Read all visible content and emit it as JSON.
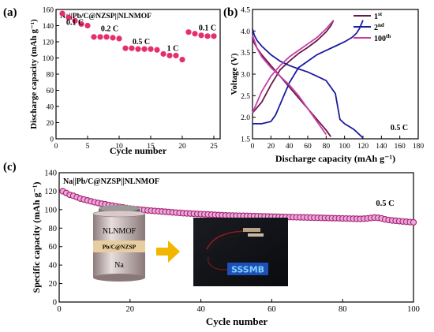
{
  "chart_data": [
    {
      "panel": "(a)",
      "type": "scatter",
      "annotation": "Na||Pb/C@NZSP||NLNMOF",
      "xlabel": "Cycle number",
      "ylabel": "Discharge capacity (mAh g⁻¹)",
      "xlim": [
        0,
        26
      ],
      "ylim": [
        0,
        160
      ],
      "xticks": [
        "0",
        "5",
        "10",
        "15",
        "20",
        "25"
      ],
      "yticks": [
        "0",
        "20",
        "40",
        "60",
        "80",
        "100",
        "120",
        "140",
        "160"
      ],
      "rate_labels": [
        {
          "text": "0.1 C",
          "x": 3.0,
          "y": 141
        },
        {
          "text": "0.2 C",
          "x": 8.5,
          "y": 133
        },
        {
          "text": "0.5 C",
          "x": 13.5,
          "y": 117
        },
        {
          "text": "1 C",
          "x": 18.5,
          "y": 109
        },
        {
          "text": "0.1 C",
          "x": 24.0,
          "y": 134
        }
      ],
      "series": [
        {
          "color": "#e62e6e",
          "x": [
            1,
            2,
            3,
            4,
            5,
            6,
            7,
            8,
            9,
            10,
            11,
            12,
            13,
            14,
            15,
            16,
            17,
            18,
            19,
            20,
            21,
            22,
            23,
            24,
            25
          ],
          "values": [
            155,
            150,
            146,
            142,
            140,
            126,
            126,
            126,
            125,
            124,
            112,
            112,
            111,
            111,
            111,
            110,
            105,
            103,
            103,
            98,
            132,
            130,
            128,
            127,
            127
          ]
        }
      ]
    },
    {
      "panel": "(b)",
      "type": "line",
      "xlabel": "Discharge capacity (mAh g⁻¹)",
      "ylabel": "Voltage (V)",
      "xlim": [
        0,
        180
      ],
      "ylim": [
        1.5,
        4.5
      ],
      "xticks": [
        "0",
        "20",
        "40",
        "60",
        "80",
        "100",
        "120",
        "140",
        "160",
        "180"
      ],
      "yticks": [
        "1.5",
        "2.0",
        "2.5",
        "3.0",
        "3.5",
        "4.0",
        "4.5"
      ],
      "annotation": "0.5 C",
      "series": [
        {
          "name": "1st",
          "color": "#6b1848",
          "charge": {
            "x": [
              0,
              10,
              20,
              30,
              40,
              50,
              60,
              70,
              80,
              85,
              88
            ],
            "values": [
              2.1,
              2.35,
              2.75,
              3.1,
              3.3,
              3.48,
              3.62,
              3.78,
              3.98,
              4.12,
              4.25
            ]
          },
          "discharge": {
            "x": [
              0,
              5,
              10,
              20,
              30,
              40,
              50,
              60,
              70,
              80,
              85
            ],
            "values": [
              3.8,
              3.6,
              3.45,
              3.2,
              2.95,
              2.7,
              2.45,
              2.2,
              1.95,
              1.7,
              1.55
            ]
          }
        },
        {
          "name": "2nd",
          "color": "#1c1c9e",
          "charge": {
            "x": [
              0,
              10,
              20,
              25,
              30,
              40,
              50,
              60,
              70,
              80,
              90,
              100,
              108,
              113,
              116,
              118,
              120
            ],
            "values": [
              1.85,
              1.85,
              1.9,
              2.05,
              2.3,
              2.8,
              3.15,
              3.3,
              3.45,
              3.55,
              3.65,
              3.75,
              3.85,
              3.95,
              4.05,
              4.15,
              4.25
            ]
          },
          "discharge": {
            "x": [
              0,
              2,
              5,
              10,
              20,
              30,
              40,
              50,
              60,
              70,
              80,
              90,
              95,
              100,
              110,
              115,
              120
            ],
            "values": [
              4.05,
              3.9,
              3.78,
              3.65,
              3.45,
              3.3,
              3.2,
              3.12,
              3.05,
              2.95,
              2.85,
              2.55,
              1.95,
              1.85,
              1.72,
              1.62,
              1.52
            ]
          }
        },
        {
          "name": "100th",
          "color": "#c440a8",
          "charge": {
            "x": [
              0,
              5,
              10,
              20,
              30,
              40,
              50,
              60,
              70,
              80,
              88
            ],
            "values": [
              2.1,
              2.35,
              2.6,
              2.95,
              3.2,
              3.4,
              3.55,
              3.7,
              3.85,
              4.05,
              4.25
            ]
          },
          "discharge": {
            "x": [
              0,
              5,
              10,
              20,
              30,
              40,
              50,
              60,
              70,
              80
            ],
            "values": [
              3.9,
              3.6,
              3.4,
              3.15,
              2.95,
              2.75,
              2.5,
              2.2,
              1.9,
              1.6
            ]
          }
        }
      ]
    },
    {
      "panel": "(c)",
      "type": "scatter",
      "annotation": "Na||Pb/C@NZSP||NLNMOF",
      "rate_label": "0.5 C",
      "xlabel": "Cycle number",
      "ylabel": "Specific capacity (mAh g⁻¹)",
      "xlim": [
        0,
        100
      ],
      "ylim": [
        0,
        140
      ],
      "xticks": [
        "0",
        "20",
        "40",
        "60",
        "80",
        "100"
      ],
      "yticks": [
        "0",
        "20",
        "40",
        "60",
        "80",
        "100",
        "120",
        "140"
      ],
      "series": [
        {
          "color": "#a8236f",
          "x": [
            1,
            2,
            3,
            4,
            5,
            6,
            7,
            8,
            9,
            10,
            11,
            12,
            13,
            14,
            15,
            16,
            17,
            18,
            19,
            20,
            21,
            22,
            23,
            24,
            25,
            26,
            27,
            28,
            29,
            30,
            31,
            32,
            33,
            34,
            35,
            36,
            37,
            38,
            39,
            40,
            41,
            42,
            43,
            44,
            45,
            46,
            47,
            48,
            49,
            50,
            51,
            52,
            53,
            54,
            55,
            56,
            57,
            58,
            59,
            60,
            61,
            62,
            63,
            64,
            65,
            66,
            67,
            68,
            69,
            70,
            71,
            72,
            73,
            74,
            75,
            76,
            77,
            78,
            79,
            80,
            81,
            82,
            83,
            84,
            85,
            86,
            87,
            88,
            89,
            90,
            91,
            92,
            93,
            94,
            95,
            96,
            97,
            98,
            99,
            100
          ],
          "values": [
            120,
            118,
            116,
            115,
            113.5,
            112,
            111,
            110,
            109,
            108,
            107.2,
            106.5,
            105.8,
            105,
            104.3,
            103.6,
            103,
            102.4,
            101.8,
            101.2,
            100.8,
            100.4,
            100,
            99.6,
            99.2,
            98.9,
            98.6,
            98.3,
            98,
            97.7,
            97.4,
            97.1,
            96.8,
            96.5,
            96.2,
            96,
            95.8,
            95.6,
            95.4,
            95.2,
            95,
            94.8,
            94.6,
            94.4,
            94.2,
            94,
            93.8,
            93.7,
            93.6,
            93.5,
            93.4,
            93.3,
            93.2,
            93.1,
            93,
            92.9,
            92.8,
            92.7,
            92.6,
            92.5,
            92.4,
            92.3,
            92.2,
            92.1,
            92,
            91.9,
            91.8,
            91.7,
            91.6,
            91.5,
            91.4,
            91.3,
            91.2,
            91.1,
            91,
            90.9,
            90.8,
            90.7,
            90.6,
            90.5,
            90.4,
            90.3,
            90.2,
            90.1,
            90,
            90.2,
            90.5,
            91,
            91.4,
            91.2,
            90.5,
            89.5,
            88.8,
            88.3,
            88,
            87.6,
            87.2,
            86.9,
            86.6,
            86.3
          ]
        }
      ],
      "inset": {
        "cell_layers": [
          "NLNMOF",
          "Pb/C@NZSP",
          "Na"
        ],
        "display_text": "SSSMB"
      }
    }
  ]
}
